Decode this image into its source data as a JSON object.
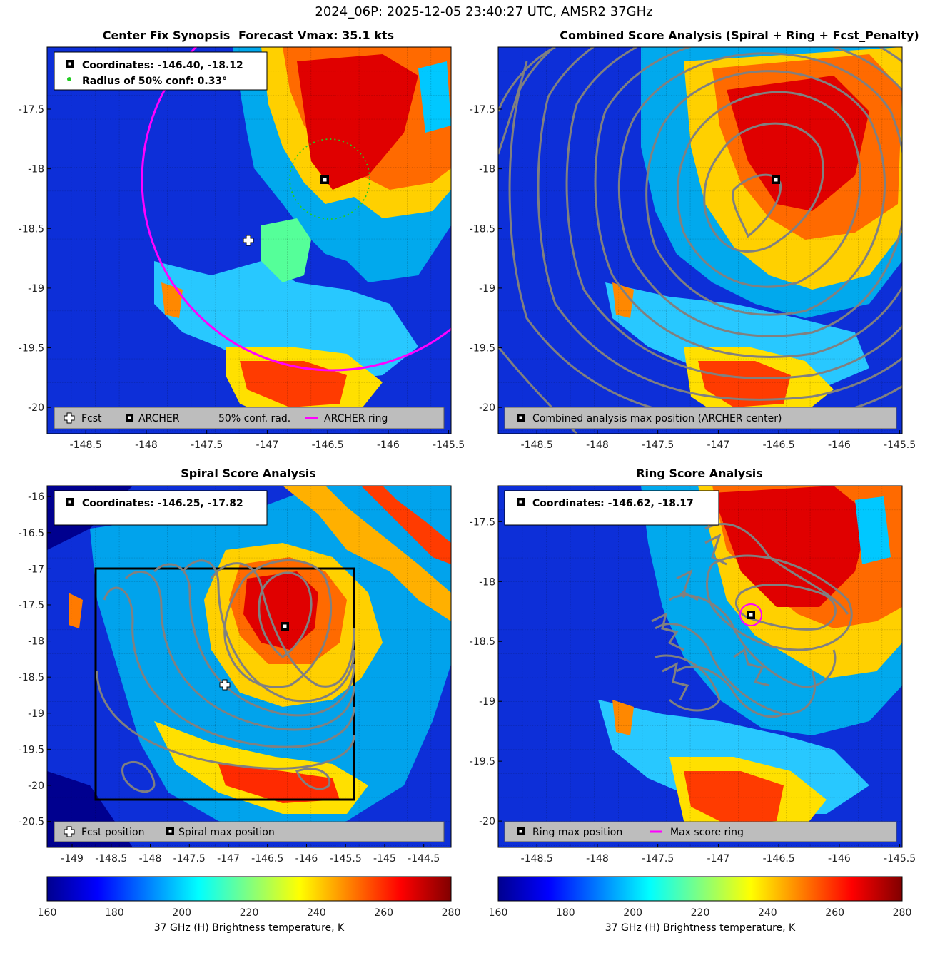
{
  "figure_title": "2024_06P: 2025-12-05 23:40:27 UTC, AMSR2 37GHz",
  "colorbar_label": "37 GHz (H) Brightness temperature, K",
  "colorbar_ticks": [
    "160",
    "180",
    "200",
    "220",
    "240",
    "260",
    "280"
  ],
  "colors": {
    "archer_ring": "#ff00ff",
    "conf_radius": "#22cc22",
    "contour": "#808080",
    "legend_bg": "#bdbdbd"
  },
  "panels": {
    "synopsis": {
      "title_left": "Center Fix Synopsis",
      "title_right": "Forecast Vmax: 35.1 kts",
      "info_line1": "Coordinates: -146.40, -18.12",
      "info_line2": "Radius of 50% conf: 0.33°",
      "legend": {
        "fcst": "Fcst",
        "archer": "ARCHER",
        "conf": "50% conf. rad.",
        "ring": "ARCHER ring"
      }
    },
    "combined": {
      "title": "Combined Score Analysis (Spiral + Ring + Fcst_Penalty)",
      "legend": {
        "max": "Combined analysis max position (ARCHER center)"
      }
    },
    "spiral": {
      "title": "Spiral Score Analysis",
      "info_line1": "Coordinates: -146.25, -17.82",
      "legend": {
        "fcst": "Fcst position",
        "max": "Spiral max position"
      }
    },
    "ring": {
      "title": "Ring Score Analysis",
      "info_line1": "Coordinates: -146.62, -18.17",
      "legend": {
        "max": "Ring max position",
        "ring": "Max score ring"
      }
    }
  },
  "chart_data": [
    {
      "type": "heatmap",
      "title": "Center Fix Synopsis    Forecast Vmax: 35.1 kts",
      "x_ticks": [
        "-148.5",
        "-148",
        "-147.5",
        "-147",
        "-146.5",
        "-146",
        "-145.5"
      ],
      "y_ticks": [
        "-17.5",
        "-18",
        "-18.5",
        "-19",
        "-19.5",
        "-20"
      ],
      "xlim": [
        -148.82,
        -145.48
      ],
      "ylim": [
        -20.22,
        -16.98
      ],
      "archer_center": [
        -146.4,
        -18.12
      ],
      "fcst_position": [
        -147.04,
        -18.62
      ],
      "conf_radius_deg": 0.33,
      "archer_ring_radius_deg": 0.92,
      "grid": true,
      "legend_position": "bottom"
    },
    {
      "type": "heatmap",
      "title": "Combined Score Analysis (Spiral + Ring + Fcst_Penalty)",
      "x_ticks": [
        "-148.5",
        "-148",
        "-147.5",
        "-147",
        "-146.5",
        "-146",
        "-145.5"
      ],
      "y_ticks": [
        "-17.5",
        "-18",
        "-18.5",
        "-19",
        "-19.5",
        "-20"
      ],
      "xlim": [
        -148.82,
        -145.48
      ],
      "ylim": [
        -20.22,
        -16.98
      ],
      "max_position": [
        -146.4,
        -18.12
      ],
      "grid": true,
      "legend_position": "bottom"
    },
    {
      "type": "heatmap",
      "title": "Spiral Score Analysis",
      "x_ticks": [
        "-149",
        "-148.5",
        "-148",
        "-147.5",
        "-147",
        "-146.5",
        "-146",
        "-145.5",
        "-145",
        "-144.5"
      ],
      "y_ticks": [
        "-16",
        "-16.5",
        "-17",
        "-17.5",
        "-18",
        "-18.5",
        "-19",
        "-19.5",
        "-20",
        "-20.5"
      ],
      "xlim": [
        -149.32,
        -144.15
      ],
      "ylim": [
        -20.86,
        -15.85
      ],
      "max_position": [
        -146.25,
        -17.82
      ],
      "fcst_position": [
        -147.04,
        -18.62
      ],
      "search_box": {
        "lon": [
          -148.8,
          -145.44
        ],
        "lat": [
          -20.22,
          -17.0
        ]
      },
      "grid": true,
      "legend_position": "bottom"
    },
    {
      "type": "heatmap",
      "title": "Ring Score Analysis",
      "x_ticks": [
        "-148.5",
        "-148",
        "-147.5",
        "-147",
        "-146.5",
        "-146",
        "-145.5"
      ],
      "y_ticks": [
        "-17.5",
        "-18",
        "-18.5",
        "-19",
        "-19.5",
        "-20"
      ],
      "xlim": [
        -148.82,
        -145.48
      ],
      "ylim": [
        -20.22,
        -17.2
      ],
      "max_position": [
        -146.62,
        -18.17
      ],
      "grid": true,
      "legend_position": "bottom"
    }
  ],
  "colorbar": {
    "min": 160,
    "max": 280,
    "colormap": "jet"
  }
}
